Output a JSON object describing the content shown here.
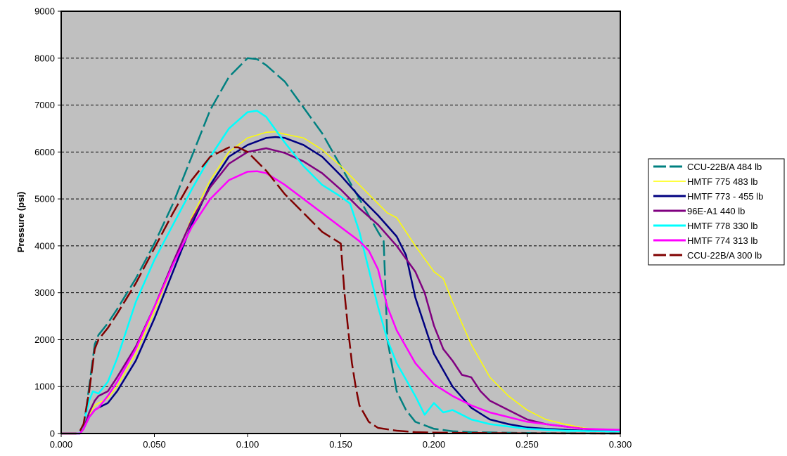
{
  "chart_data": {
    "type": "line",
    "title": "",
    "xlabel": "",
    "ylabel": "Pressure (psi)",
    "xlim": [
      0,
      0.3
    ],
    "ylim": [
      0,
      9000
    ],
    "x_ticks": [
      "0.000",
      "0.050",
      "0.100",
      "0.150",
      "0.200",
      "0.250",
      "0.300"
    ],
    "y_ticks": [
      "0",
      "1000",
      "2000",
      "3000",
      "4000",
      "5000",
      "6000",
      "7000",
      "8000",
      "9000"
    ],
    "grid": "horizontal dashed",
    "plot_background": "#c0c0c0",
    "legend_position": "right",
    "series": [
      {
        "name": "CCU-22B/A 484 lb",
        "color": "#008080",
        "dashed": true,
        "x": [
          0,
          0.01,
          0.012,
          0.015,
          0.018,
          0.02,
          0.025,
          0.03,
          0.04,
          0.05,
          0.06,
          0.07,
          0.08,
          0.09,
          0.1,
          0.105,
          0.11,
          0.12,
          0.13,
          0.14,
          0.15,
          0.16,
          0.17,
          0.173,
          0.175,
          0.18,
          0.185,
          0.19,
          0.2,
          0.21,
          0.22,
          0.25,
          0.3
        ],
        "y": [
          0,
          0,
          100,
          1000,
          1900,
          2100,
          2350,
          2650,
          3300,
          4050,
          4900,
          5900,
          6900,
          7600,
          8000,
          7980,
          7850,
          7500,
          6950,
          6400,
          5700,
          5000,
          4300,
          4100,
          2000,
          900,
          500,
          250,
          100,
          50,
          30,
          10,
          0
        ]
      },
      {
        "name": "HMTF 775 483 lb",
        "color": "#ffff00",
        "dashed": false,
        "x": [
          0,
          0.01,
          0.012,
          0.015,
          0.018,
          0.02,
          0.025,
          0.03,
          0.04,
          0.05,
          0.06,
          0.07,
          0.08,
          0.09,
          0.1,
          0.11,
          0.115,
          0.12,
          0.13,
          0.14,
          0.15,
          0.16,
          0.17,
          0.175,
          0.18,
          0.19,
          0.2,
          0.205,
          0.21,
          0.22,
          0.23,
          0.24,
          0.25,
          0.26,
          0.27,
          0.28,
          0.29,
          0.3
        ],
        "y": [
          0,
          0,
          100,
          400,
          600,
          650,
          750,
          1000,
          1700,
          2600,
          3600,
          4600,
          5400,
          6000,
          6300,
          6420,
          6430,
          6380,
          6300,
          6050,
          5700,
          5300,
          4900,
          4700,
          4600,
          4000,
          3450,
          3300,
          2800,
          1900,
          1200,
          800,
          500,
          300,
          200,
          120,
          80,
          50
        ]
      },
      {
        "name": "HMTF 773 - 455 lb",
        "color": "#000080",
        "dashed": false,
        "x": [
          0,
          0.01,
          0.012,
          0.015,
          0.018,
          0.02,
          0.025,
          0.03,
          0.04,
          0.05,
          0.06,
          0.07,
          0.08,
          0.09,
          0.1,
          0.11,
          0.115,
          0.12,
          0.13,
          0.14,
          0.15,
          0.16,
          0.17,
          0.18,
          0.185,
          0.19,
          0.2,
          0.21,
          0.22,
          0.23,
          0.24,
          0.25,
          0.26,
          0.28,
          0.3
        ],
        "y": [
          0,
          0,
          100,
          350,
          500,
          550,
          650,
          900,
          1550,
          2450,
          3450,
          4450,
          5300,
          5900,
          6150,
          6300,
          6320,
          6300,
          6150,
          5900,
          5500,
          5050,
          4650,
          4200,
          3800,
          2900,
          1700,
          1000,
          550,
          300,
          200,
          130,
          100,
          60,
          40
        ]
      },
      {
        "name": "96E-A1 440 lb",
        "color": "#800080",
        "dashed": false,
        "x": [
          0,
          0.01,
          0.012,
          0.015,
          0.018,
          0.02,
          0.025,
          0.03,
          0.04,
          0.05,
          0.06,
          0.07,
          0.08,
          0.09,
          0.1,
          0.11,
          0.12,
          0.13,
          0.14,
          0.15,
          0.16,
          0.17,
          0.18,
          0.19,
          0.195,
          0.2,
          0.205,
          0.21,
          0.215,
          0.22,
          0.225,
          0.23,
          0.24,
          0.25,
          0.26,
          0.28,
          0.3
        ],
        "y": [
          0,
          0,
          100,
          450,
          700,
          800,
          900,
          1200,
          1850,
          2700,
          3650,
          4550,
          5250,
          5750,
          6000,
          6080,
          5980,
          5800,
          5550,
          5200,
          4800,
          4450,
          4000,
          3450,
          3000,
          2300,
          1800,
          1550,
          1250,
          1200,
          900,
          700,
          500,
          300,
          200,
          100,
          50
        ]
      },
      {
        "name": "HMTF 778 330 lb",
        "color": "#00ffff",
        "dashed": false,
        "x": [
          0,
          0.01,
          0.012,
          0.015,
          0.017,
          0.02,
          0.025,
          0.03,
          0.035,
          0.04,
          0.05,
          0.06,
          0.07,
          0.08,
          0.09,
          0.1,
          0.105,
          0.11,
          0.12,
          0.13,
          0.14,
          0.15,
          0.155,
          0.16,
          0.165,
          0.17,
          0.175,
          0.18,
          0.185,
          0.19,
          0.195,
          0.2,
          0.205,
          0.21,
          0.215,
          0.22,
          0.23,
          0.24,
          0.25,
          0.27,
          0.3
        ],
        "y": [
          0,
          0,
          200,
          700,
          900,
          850,
          1100,
          1600,
          2200,
          2800,
          3700,
          4450,
          5200,
          5900,
          6500,
          6850,
          6880,
          6750,
          6200,
          5700,
          5300,
          5050,
          4900,
          4300,
          3500,
          2700,
          2000,
          1500,
          1150,
          800,
          400,
          650,
          450,
          500,
          400,
          300,
          200,
          150,
          100,
          60,
          40
        ]
      },
      {
        "name": "HMTF 774 313 lb",
        "color": "#ff00ff",
        "dashed": false,
        "x": [
          0,
          0.01,
          0.012,
          0.015,
          0.018,
          0.02,
          0.025,
          0.03,
          0.04,
          0.05,
          0.06,
          0.07,
          0.08,
          0.09,
          0.1,
          0.105,
          0.11,
          0.12,
          0.13,
          0.14,
          0.15,
          0.16,
          0.165,
          0.17,
          0.175,
          0.18,
          0.19,
          0.2,
          0.21,
          0.22,
          0.23,
          0.24,
          0.25,
          0.26,
          0.27,
          0.28,
          0.3
        ],
        "y": [
          0,
          0,
          100,
          350,
          500,
          550,
          800,
          1100,
          1800,
          2700,
          3600,
          4400,
          5000,
          5400,
          5580,
          5590,
          5550,
          5300,
          5000,
          4700,
          4400,
          4100,
          3900,
          3500,
          2700,
          2200,
          1500,
          1050,
          800,
          600,
          450,
          350,
          250,
          200,
          150,
          100,
          80
        ]
      },
      {
        "name": "CCU-22B/A 300 lb",
        "color": "#800000",
        "dashed": true,
        "x": [
          0,
          0.008,
          0.01,
          0.012,
          0.015,
          0.018,
          0.02,
          0.025,
          0.03,
          0.04,
          0.05,
          0.06,
          0.07,
          0.08,
          0.09,
          0.095,
          0.1,
          0.11,
          0.12,
          0.13,
          0.14,
          0.15,
          0.152,
          0.154,
          0.156,
          0.158,
          0.16,
          0.165,
          0.17,
          0.18,
          0.19,
          0.2,
          0.22,
          0.25,
          0.3
        ],
        "y": [
          0,
          0,
          50,
          200,
          900,
          1800,
          2000,
          2250,
          2550,
          3200,
          3950,
          4700,
          5400,
          5900,
          6100,
          6100,
          6000,
          5600,
          5100,
          4700,
          4300,
          4050,
          3000,
          2200,
          1500,
          1000,
          600,
          250,
          120,
          60,
          30,
          20,
          10,
          5,
          0
        ]
      }
    ]
  }
}
